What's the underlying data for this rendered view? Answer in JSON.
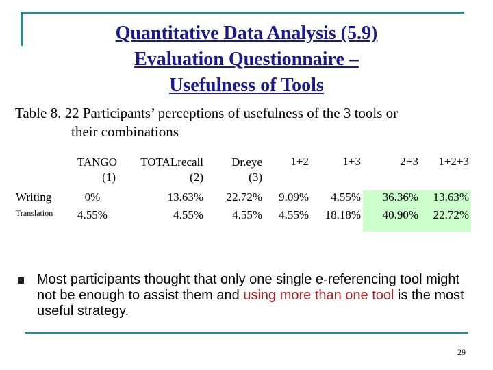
{
  "title": {
    "line1": "Quantitative Data Analysis (5.9)",
    "line2": "Evaluation Questionnaire –",
    "line3": "Usefulness of Tools"
  },
  "caption": {
    "line1": "Table 8. 22 Participants’ perceptions of usefulness of the 3 tools or",
    "line2": "their combinations"
  },
  "table": {
    "headers": [
      {
        "name": "TANGO",
        "num": "(1)"
      },
      {
        "name": "TOTALrecall",
        "num": "(2)"
      },
      {
        "name": "Dr.eye",
        "num": "(3)"
      },
      {
        "name": "1+2"
      },
      {
        "name": "1+3"
      },
      {
        "name": "2+3"
      },
      {
        "name": "1+2+3"
      }
    ],
    "rows": [
      {
        "label": "Writing",
        "values": [
          "0%",
          "13.63%",
          "22.72%",
          "9.09%",
          "4.55%",
          "36.36%",
          "13.63%"
        ]
      },
      {
        "label": "Translation",
        "values": [
          "4.55%",
          "4.55%",
          "4.55%",
          "4.55%",
          "18.18%",
          "40.90%",
          "22.72%"
        ]
      }
    ],
    "highlight_color": "#ccffcc"
  },
  "bullet": {
    "part1": "Most participants thought that only one single e-referencing tool might not be enough to assist them and ",
    "highlight": "using more than one tool",
    "part2": " is the most useful strategy."
  },
  "page_number": "29",
  "colors": {
    "title": "#1a1a8c",
    "frame": "#2b8a88",
    "accent": "#b22222"
  }
}
